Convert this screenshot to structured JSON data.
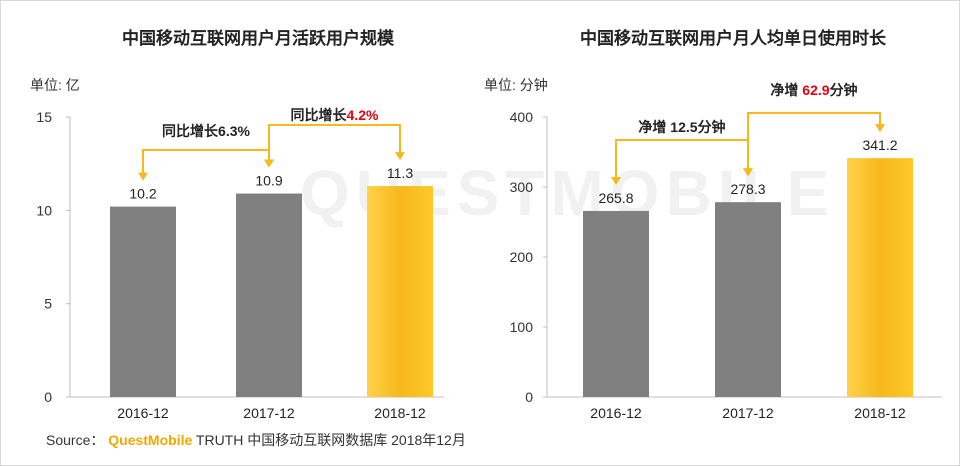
{
  "watermark": "QUESTMOBILE",
  "colors": {
    "gray": "#808080",
    "gold": "#f6b81c",
    "gold_light": "#ffd24a",
    "arrow": "#f6b81c",
    "highlight": "#e60012"
  },
  "source": {
    "label": "Source：",
    "brand": "QuestMobile",
    "rest": "TRUTH 中国移动互联网数据库 2018年12月"
  },
  "chart_data": [
    {
      "type": "bar",
      "title": "中国移动互联网用户月活跃用户规模",
      "unit_label": "单位: 亿",
      "categories": [
        "2016-12",
        "2017-12",
        "2018-12"
      ],
      "values": [
        10.2,
        10.9,
        11.3
      ],
      "value_labels": [
        "10.2",
        "10.9",
        "11.3"
      ],
      "ylim": [
        0,
        15
      ],
      "yticks": [
        0,
        5,
        10,
        15
      ],
      "highlight_index": 2,
      "annotations": [
        {
          "from": 0,
          "to": 1,
          "prefix": "同比增长",
          "value": "6.3%",
          "highlight": false
        },
        {
          "from": 1,
          "to": 2,
          "prefix": "同比增长",
          "value": "4.2%",
          "highlight": true
        }
      ]
    },
    {
      "type": "bar",
      "title": "中国移动互联网用户月人均单日使用时长",
      "unit_label": "单位: 分钟",
      "categories": [
        "2016-12",
        "2017-12",
        "2018-12"
      ],
      "values": [
        265.8,
        278.3,
        341.2
      ],
      "value_labels": [
        "265.8",
        "278.3",
        "341.2"
      ],
      "ylim": [
        0,
        400
      ],
      "yticks": [
        0,
        100,
        200,
        300,
        400
      ],
      "highlight_index": 2,
      "annotations": [
        {
          "from": 0,
          "to": 1,
          "prefix": "净增",
          "value": "12.5",
          "suffix": "分钟",
          "highlight": false
        },
        {
          "from": 1,
          "to": 2,
          "prefix": "净增",
          "value": "62.9",
          "suffix": "分钟",
          "highlight": true
        }
      ]
    }
  ]
}
